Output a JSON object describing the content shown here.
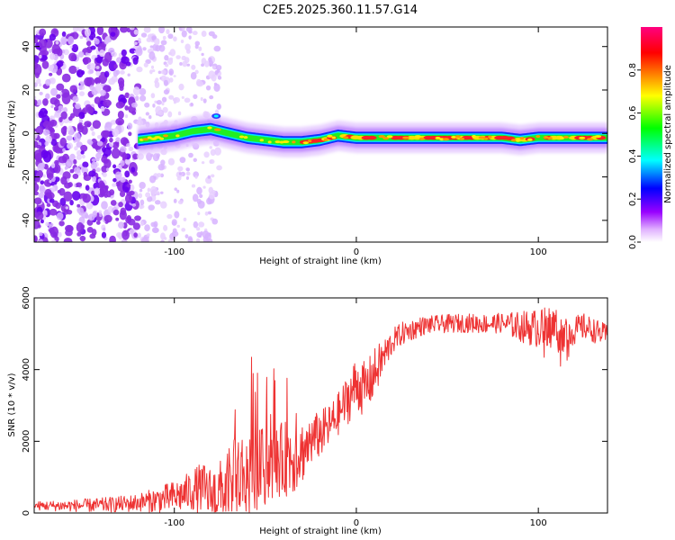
{
  "title": "C2E5.2025.360.11.57.G14",
  "chart_data": [
    {
      "type": "heatmap",
      "xlabel": "Height of straight line (km)",
      "ylabel": "Frequency (Hz)",
      "xlim": [
        -177,
        138
      ],
      "ylim": [
        -50,
        49
      ],
      "xticks": [
        -100,
        0,
        100
      ],
      "yticks": [
        -40,
        -20,
        0,
        20,
        40
      ],
      "colorbar": {
        "label": "Normalized spectral amplitude",
        "range": [
          0,
          1
        ],
        "ticks": [
          0.0,
          0.2,
          0.4,
          0.6,
          0.8
        ],
        "tick_labels": [
          "0.0",
          "0.2",
          "0.4",
          "0.6",
          "0.8"
        ],
        "colors": [
          "#ffffff",
          "#9900ff",
          "#0000ff",
          "#00ffff",
          "#00ff00",
          "#ffff00",
          "#ff8000",
          "#ff0000",
          "#ff0080"
        ]
      },
      "signal_center_hz": [
        [
          -120,
          -3
        ],
        [
          -110,
          -2
        ],
        [
          -100,
          -1
        ],
        [
          -90,
          1
        ],
        [
          -80,
          2
        ],
        [
          -70,
          0
        ],
        [
          -60,
          -2
        ],
        [
          -50,
          -3
        ],
        [
          -40,
          -4
        ],
        [
          -30,
          -4
        ],
        [
          -20,
          -3
        ],
        [
          -10,
          -1
        ],
        [
          0,
          -2
        ],
        [
          10,
          -2
        ],
        [
          20,
          -2
        ],
        [
          40,
          -2
        ],
        [
          60,
          -2
        ],
        [
          80,
          -2
        ],
        [
          90,
          -3
        ],
        [
          100,
          -2
        ],
        [
          120,
          -2
        ],
        [
          138,
          -2
        ]
      ],
      "noise_region_km": [
        -177,
        -85
      ]
    },
    {
      "type": "line",
      "xlabel": "Height of straight line (km)",
      "ylabel": "SNR (10 * v/v)",
      "xlim": [
        -177,
        138
      ],
      "ylim": [
        0,
        6000
      ],
      "xticks": [
        -100,
        0,
        100
      ],
      "yticks": [
        0,
        2000,
        4000,
        6000
      ],
      "series": [
        {
          "name": "SNR",
          "color": "#ee3333",
          "x": [
            -177,
            -160,
            -140,
            -125,
            -110,
            -100,
            -95,
            -90,
            -85,
            -80,
            -75,
            -70,
            -65,
            -60,
            -55,
            -50,
            -45,
            -40,
            -35,
            -30,
            -25,
            -20,
            -15,
            -10,
            -5,
            0,
            5,
            10,
            15,
            20,
            25,
            30,
            35,
            40,
            50,
            60,
            70,
            80,
            90,
            100,
            110,
            115,
            120,
            125,
            130,
            138
          ],
          "y": [
            200,
            200,
            220,
            260,
            360,
            450,
            520,
            640,
            700,
            500,
            560,
            700,
            1000,
            1100,
            1200,
            1250,
            1400,
            1500,
            1600,
            1700,
            2000,
            2200,
            2400,
            2750,
            3150,
            3600,
            3450,
            3900,
            4350,
            4800,
            5000,
            5100,
            5200,
            5250,
            5280,
            5300,
            5280,
            5300,
            5200,
            5150,
            5200,
            5000,
            5100,
            5200,
            5100,
            4950
          ]
        }
      ],
      "noise_amplitude": [
        [
          -177,
          120
        ],
        [
          -120,
          250
        ],
        [
          -95,
          500
        ],
        [
          -85,
          700
        ],
        [
          -75,
          900
        ],
        [
          -65,
          1300
        ],
        [
          -55,
          1200
        ],
        [
          -45,
          1000
        ],
        [
          -35,
          1100
        ],
        [
          -25,
          700
        ],
        [
          -10,
          600
        ],
        [
          0,
          800
        ],
        [
          10,
          700
        ],
        [
          20,
          350
        ],
        [
          40,
          250
        ],
        [
          80,
          280
        ],
        [
          95,
          500
        ],
        [
          110,
          650
        ],
        [
          120,
          400
        ],
        [
          138,
          300
        ]
      ]
    }
  ]
}
